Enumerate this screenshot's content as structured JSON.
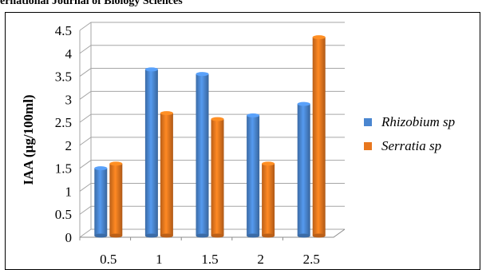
{
  "header": {
    "journal_title": "ernational Journal of Biology Sciences"
  },
  "chart_data": {
    "type": "bar",
    "style": "3d-cylinder",
    "categories": [
      "0.5",
      "1",
      "1.5",
      "2",
      "2.5"
    ],
    "series": [
      {
        "name": "Rhizobium sp",
        "values": [
          1.5,
          3.65,
          3.55,
          2.65,
          2.9
        ],
        "color": "#4a86d0"
      },
      {
        "name": "Serratia sp",
        "values": [
          1.6,
          2.7,
          2.57,
          1.6,
          4.35
        ],
        "color": "#e8771e"
      }
    ],
    "title": "",
    "xlabel": "",
    "ylabel": "IAA (µg/100ml)",
    "ylim": [
      0,
      4.5
    ],
    "yticks": [
      "0",
      "0.5",
      "1",
      "1.5",
      "2",
      "2.5",
      "3",
      "3.5",
      "4",
      "4.5"
    ],
    "grid": true,
    "legend_position": "right",
    "legend_font_style": "italic"
  }
}
